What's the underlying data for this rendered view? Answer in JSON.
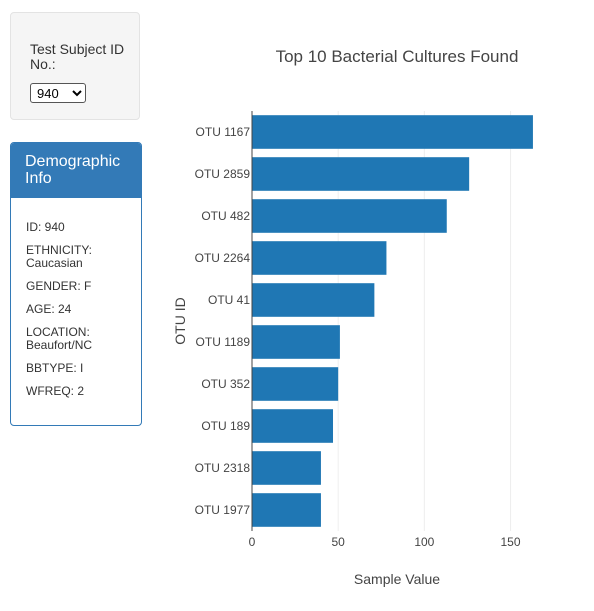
{
  "selector": {
    "label": "Test Subject ID No.:",
    "selected": "940"
  },
  "panel": {
    "title": "Demographic Info",
    "rows": [
      "ID: 940",
      "ETHNICITY: Caucasian",
      "GENDER: F",
      "AGE: 24",
      "LOCATION: Beaufort/NC",
      "BBTYPE: I",
      "WFREQ: 2"
    ]
  },
  "colors": {
    "bar": "#1f77b4",
    "panel": "#337ab7"
  },
  "chart_data": {
    "type": "bar",
    "orientation": "horizontal",
    "title": "Top 10 Bacterial Cultures Found",
    "xlabel": "Sample Value",
    "ylabel": "OTU ID",
    "categories": [
      "OTU 1167",
      "OTU 2859",
      "OTU 482",
      "OTU 2264",
      "OTU 41",
      "OTU 1189",
      "OTU 352",
      "OTU 189",
      "OTU 2318",
      "OTU 1977"
    ],
    "values": [
      163,
      126,
      113,
      78,
      71,
      51,
      50,
      47,
      40,
      40
    ],
    "xticks": [
      0,
      50,
      100,
      150
    ],
    "xlim": [
      0,
      170
    ],
    "grid": true
  }
}
